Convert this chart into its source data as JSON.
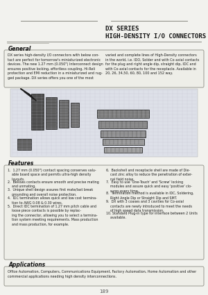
{
  "title_line1": "DX SERIES",
  "title_line2": "HIGH-DENSITY I/O CONNECTORS",
  "general_title": "General",
  "general_text_left": "DX series high-density I/O connectors with below con-\ntact are perfect for tomorrow's miniaturized electronic\ndevices. The new 1.27 mm (0.050\") Interconnect design\nensures positive locking, effortless coupling, Hi-Reli\nprotection and EMI reduction in a miniaturized and rug-\nged package. DX series offers you one of the most",
  "general_text_right": "varied and complete lines of High-Density connectors\nin the world, i.e. IDO, Solder and with Co-axial contacts\nfor the plug and right angle dip, straight dip, IDC and\nwith Co-axial contacts for the receptacle. Available in\n20, 26, 34,50, 60, 80, 100 and 152 way.",
  "features_title": "Features",
  "features_left": [
    "1.  1.27 mm (0.050\") contact spacing conserves valu-\n    able board space and permits ultra-high density\n    layouts.",
    "2.  Bellows contacts ensure smooth and precise mating\n    and unmating.",
    "3.  Unique shell design assures first mate/last break\n    grounding and overall noise protection.",
    "4.  IDC termination allows quick and low cost termina-\n    tion to AWG 0.08 & 0.30 wires.",
    "5.  Direct IDC termination of 1.27 mm pitch cable and\n    loose piece contacts is possible by replac-\n    ing the connector, allowing you to select a termina-\n    tion system meeting requirements. Mass production\n    and mass production, for example."
  ],
  "features_right": [
    "6.  Backshell and receptacle shell are made of Die-\n    cast zinc alloy to reduce the penetration of exter-\n    nal field noise.",
    "7.  Easy to use 'One-Touch' and 'Screw' locking\n    modules and assure quick and easy 'positive' clo-\n    sures every time.",
    "8.  Termination method is available in IDC, Soldering,\n    Right Angle Dip or Straight Dip and SMT.",
    "9.  DX with 3 coaxes and 3 cavities for Co-axial\n    contacts are newly introduced to meet the needs\n    of high speed data transmission.",
    "10. Standard Plug-in type for interface between 2 Units\n    available."
  ],
  "applications_title": "Applications",
  "applications_text": "Office Automation, Computers, Communications Equipment, Factory Automation, Home Automation and other\ncommercial applications needing high density interconnections.",
  "page_number": "189",
  "bg_color": "#f2f2ee",
  "box_facecolor": "#eeeee8",
  "box_edgecolor": "#999990",
  "title_color": "#111111",
  "text_color": "#1a1a1a",
  "sep_color": "#888880"
}
